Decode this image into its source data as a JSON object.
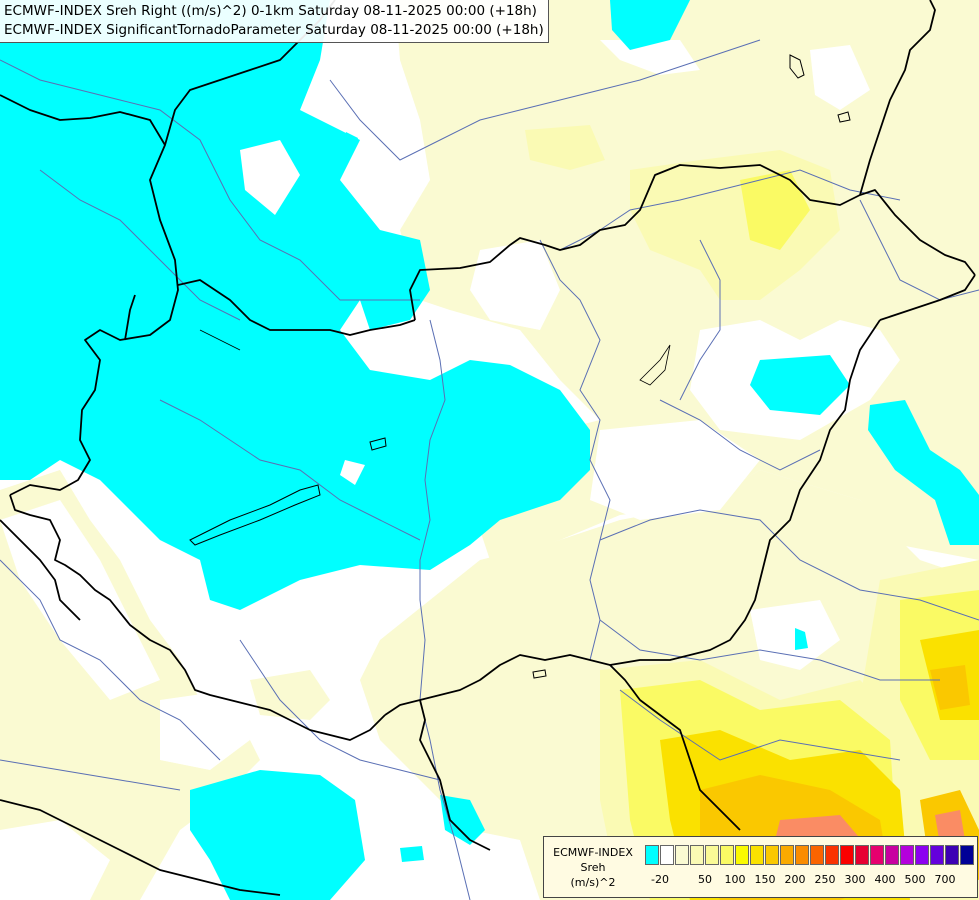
{
  "title": {
    "line1": "ECMWF-INDEX Sreh Right ((m/s)^2) 0-1km Saturday 08-11-2025 00:00 (+18h)",
    "line2": "ECMWF-INDEX SignificantTornadoParameter Saturday 08-11-2025 00:00 (+18h)"
  },
  "legend": {
    "line1": "ECMWF-INDEX",
    "line2": "Sreh",
    "line3": "(m/s)^2",
    "colors": [
      "#00ffff",
      "#ffffff",
      "#fafad2",
      "#fafab4",
      "#fafa96",
      "#fafa64",
      "#fafa00",
      "#fae100",
      "#fac800",
      "#faaa00",
      "#fa8c00",
      "#fa6400",
      "#fa3200",
      "#fa0000",
      "#e60032",
      "#e6006e",
      "#c800a0",
      "#b400dc",
      "#8c00f0",
      "#6400dc",
      "#3c00b4",
      "#000096"
    ],
    "ticks": [
      "-20",
      "50",
      "100",
      "150",
      "200",
      "250",
      "300",
      "400",
      "500",
      "700"
    ]
  },
  "map_colors": {
    "cyan": "#00ffff",
    "white": "#ffffff",
    "light_yellow": "#fafad2",
    "yellow": "#fafab4",
    "deep_yellow": "#fafa64",
    "gold": "#fae100",
    "orange": "#fac800",
    "border": "#000000",
    "river": "#5a6fb4"
  }
}
